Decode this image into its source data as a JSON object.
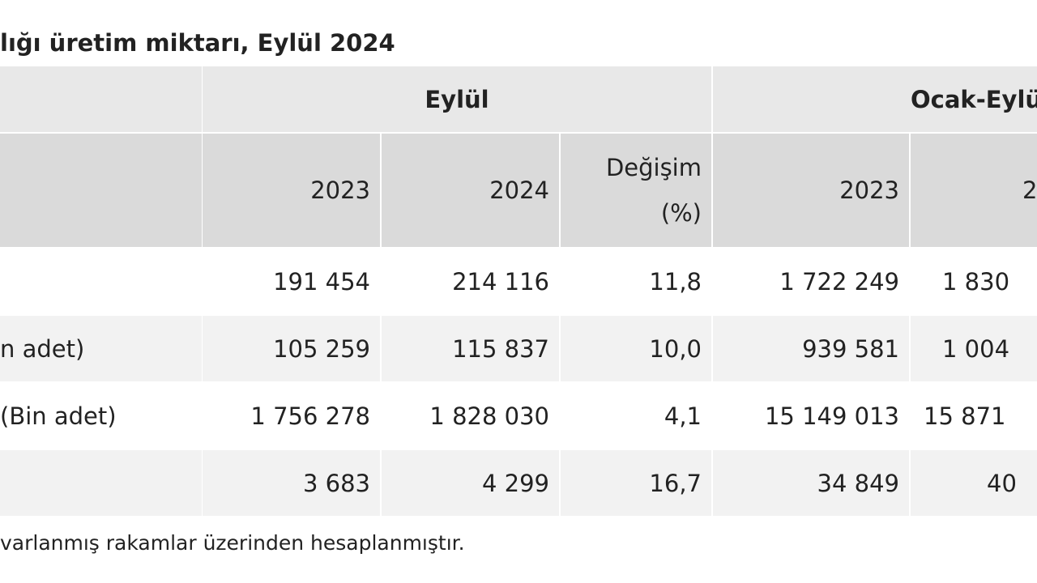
{
  "title": "lığı üretim miktarı, Eylül 2024",
  "table": {
    "groups": [
      "Eylül",
      "Ocak-Eylü"
    ],
    "columns": [
      "2023",
      "2024",
      "Değişim (%)",
      "2023",
      "2"
    ],
    "rows": [
      [
        "",
        "191 454",
        "214 116",
        "11,8",
        "1 722 249",
        "1 830"
      ],
      [
        "n adet)",
        "105 259",
        "115 837",
        "10,0",
        "939 581",
        "1 004"
      ],
      [
        "(Bin adet)",
        "1 756 278",
        "1 828 030",
        "4,1",
        "15 149 013",
        "15 871"
      ],
      [
        "",
        "3 683",
        "4 299",
        "16,7",
        "34 849",
        "40"
      ]
    ]
  },
  "footnote": "varlanmış rakamlar üzerinden hesaplanmıştır."
}
